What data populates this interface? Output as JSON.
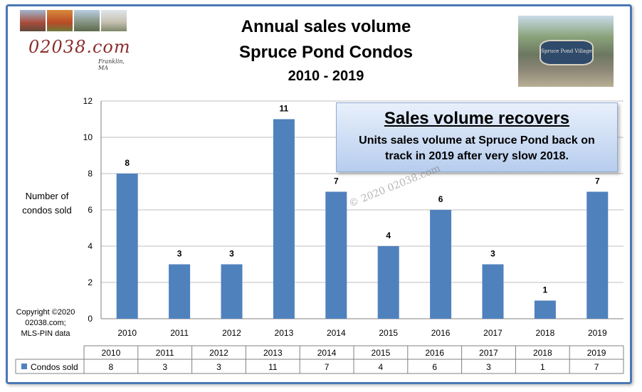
{
  "header": {
    "title_line1": "Annual sales volume",
    "title_line2": "Spruce Pond Condos",
    "title_line3": "2010 - 2019"
  },
  "logo": {
    "text": "02038.com",
    "subtext": "Franklin, MA"
  },
  "photo": {
    "sign_text": "Spruce Pond Village"
  },
  "callout": {
    "heading": "Sales volume recovers",
    "body": "Units sales volume at Spruce Pond back on track in 2019 after very slow 2018."
  },
  "watermark": "© 2020 02038.com",
  "axis": {
    "ylabel_line1": "Number  of",
    "ylabel_line2": "condos sold"
  },
  "copyright": {
    "line1": "Copyright ©2020",
    "line2": "02038.com;",
    "line3": "MLS-PIN data"
  },
  "colors": {
    "bar": "#4f81bd",
    "frame": "#4a78b3"
  },
  "chart_data": {
    "type": "bar",
    "categories": [
      "2010",
      "2011",
      "2012",
      "2013",
      "2014",
      "2015",
      "2016",
      "2017",
      "2018",
      "2019"
    ],
    "series": [
      {
        "name": "Condos sold",
        "values": [
          8,
          3,
          3,
          11,
          7,
          4,
          6,
          3,
          1,
          7
        ]
      }
    ],
    "title": "Annual sales volume Spruce Pond Condos 2010 - 2019",
    "ylabel": "Number  of condos sold",
    "xlabel": "",
    "ylim": [
      0,
      12
    ],
    "yticks": [
      0,
      2,
      4,
      6,
      8,
      10,
      12
    ],
    "grid": true,
    "data_labels": true,
    "data_table": true,
    "legend": "data-table"
  }
}
